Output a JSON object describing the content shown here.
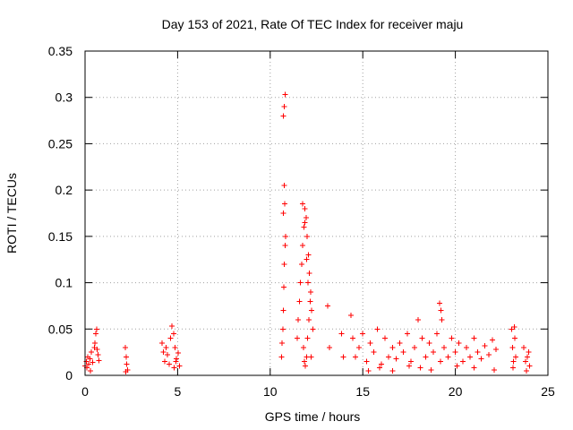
{
  "chart_data": {
    "type": "scatter",
    "title": "Day 153 of 2021, Rate Of TEC Index for receiver maju",
    "xlabel": "GPS time / hours",
    "ylabel": "ROTI / TECUs",
    "xlim": [
      0,
      25
    ],
    "ylim": [
      0,
      0.35
    ],
    "xticks": [
      0,
      5,
      10,
      15,
      20,
      25
    ],
    "xtick_labels": [
      "0",
      "5",
      "10",
      "15",
      "20",
      "25"
    ],
    "yticks": [
      0,
      0.05,
      0.1,
      0.15,
      0.2,
      0.25,
      0.3,
      0.35
    ],
    "ytick_labels": [
      "0",
      "0.05",
      "0.1",
      "0.15",
      "0.2",
      "0.25",
      "0.3",
      "0.35"
    ],
    "grid": true,
    "marker": "+",
    "color": "#ff0000",
    "series": [
      {
        "name": "ROTI",
        "x": [
          0.0,
          0.08,
          0.15,
          0.2,
          0.27,
          0.35,
          0.42,
          0.5,
          0.57,
          0.63,
          0.7,
          0.76,
          0.1,
          0.3,
          0.52,
          0.66,
          2.18,
          2.22,
          2.26,
          2.3,
          2.2,
          4.15,
          4.22,
          4.3,
          4.38,
          4.45,
          4.55,
          4.62,
          4.7,
          4.78,
          4.86,
          4.94,
          5.02,
          5.1,
          4.8,
          4.9,
          10.62,
          10.65,
          10.68,
          10.71,
          10.74,
          10.77,
          10.8,
          10.83,
          10.72,
          10.75,
          10.78,
          10.7,
          10.76,
          10.8,
          11.45,
          11.52,
          11.58,
          11.64,
          11.7,
          11.76,
          11.82,
          11.88,
          11.94,
          12.0,
          12.06,
          12.12,
          12.18,
          12.24,
          12.3,
          11.8,
          11.84,
          11.9,
          11.96,
          12.02,
          12.1,
          12.16,
          11.75,
          11.86,
          11.98,
          12.05,
          12.2,
          13.1,
          13.2,
          13.85,
          13.95,
          14.35,
          14.45,
          14.6,
          14.8,
          15.0,
          15.2,
          15.4,
          15.6,
          15.8,
          16.0,
          16.2,
          16.4,
          16.6,
          16.8,
          17.0,
          17.2,
          17.4,
          17.6,
          17.8,
          18.0,
          18.2,
          18.4,
          18.6,
          18.8,
          19.0,
          19.2,
          19.4,
          19.6,
          19.8,
          20.0,
          20.2,
          20.4,
          20.6,
          20.8,
          21.0,
          21.2,
          21.4,
          21.6,
          21.8,
          22.0,
          22.2,
          15.3,
          15.9,
          16.6,
          17.5,
          18.1,
          18.7,
          19.15,
          19.22,
          19.28,
          20.1,
          21.0,
          22.1,
          23.05,
          23.1,
          23.15,
          23.2,
          23.25,
          23.12,
          23.18,
          23.7,
          23.8,
          23.88,
          23.95,
          24.0,
          23.85
        ],
        "y": [
          0.01,
          0.015,
          0.02,
          0.012,
          0.018,
          0.025,
          0.014,
          0.03,
          0.045,
          0.05,
          0.022,
          0.016,
          0.008,
          0.005,
          0.035,
          0.028,
          0.03,
          0.02,
          0.012,
          0.006,
          0.004,
          0.035,
          0.025,
          0.015,
          0.03,
          0.022,
          0.012,
          0.04,
          0.053,
          0.045,
          0.03,
          0.018,
          0.024,
          0.01,
          0.008,
          0.015,
          0.02,
          0.035,
          0.05,
          0.07,
          0.095,
          0.12,
          0.14,
          0.15,
          0.175,
          0.205,
          0.185,
          0.28,
          0.29,
          0.303,
          0.04,
          0.06,
          0.08,
          0.1,
          0.12,
          0.14,
          0.16,
          0.18,
          0.17,
          0.15,
          0.13,
          0.11,
          0.09,
          0.07,
          0.05,
          0.03,
          0.015,
          0.01,
          0.02,
          0.04,
          0.06,
          0.08,
          0.185,
          0.165,
          0.125,
          0.1,
          0.02,
          0.075,
          0.03,
          0.045,
          0.02,
          0.065,
          0.04,
          0.02,
          0.03,
          0.045,
          0.015,
          0.035,
          0.025,
          0.05,
          0.012,
          0.04,
          0.02,
          0.03,
          0.018,
          0.035,
          0.025,
          0.045,
          0.015,
          0.03,
          0.06,
          0.04,
          0.02,
          0.035,
          0.025,
          0.045,
          0.015,
          0.03,
          0.02,
          0.04,
          0.025,
          0.035,
          0.015,
          0.03,
          0.02,
          0.04,
          0.025,
          0.018,
          0.032,
          0.022,
          0.038,
          0.028,
          0.005,
          0.008,
          0.005,
          0.01,
          0.008,
          0.006,
          0.078,
          0.07,
          0.06,
          0.01,
          0.008,
          0.006,
          0.05,
          0.03,
          0.015,
          0.04,
          0.02,
          0.008,
          0.052,
          0.03,
          0.015,
          0.02,
          0.025,
          0.01,
          0.005
        ]
      }
    ]
  }
}
